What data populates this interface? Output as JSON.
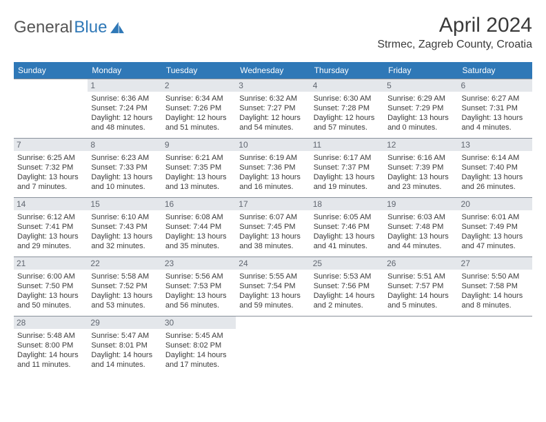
{
  "brand": {
    "part1": "General",
    "part2": "Blue"
  },
  "title": {
    "monthYear": "April 2024",
    "location": "Strmec, Zagreb County, Croatia"
  },
  "colors": {
    "headerBg": "#2f78b7",
    "headerText": "#ffffff",
    "daynumBg": "#e4e7eb",
    "daynumText": "#606670",
    "rowBorder": "#88909a",
    "bodyText": "#3a3a3a",
    "brandBlue": "#2f78b7"
  },
  "dayHeaders": [
    "Sunday",
    "Monday",
    "Tuesday",
    "Wednesday",
    "Thursday",
    "Friday",
    "Saturday"
  ],
  "weeks": [
    [
      {
        "empty": true
      },
      {
        "num": "1",
        "sunrise": "Sunrise: 6:36 AM",
        "sunset": "Sunset: 7:24 PM",
        "day1": "Daylight: 12 hours",
        "day2": "and 48 minutes."
      },
      {
        "num": "2",
        "sunrise": "Sunrise: 6:34 AM",
        "sunset": "Sunset: 7:26 PM",
        "day1": "Daylight: 12 hours",
        "day2": "and 51 minutes."
      },
      {
        "num": "3",
        "sunrise": "Sunrise: 6:32 AM",
        "sunset": "Sunset: 7:27 PM",
        "day1": "Daylight: 12 hours",
        "day2": "and 54 minutes."
      },
      {
        "num": "4",
        "sunrise": "Sunrise: 6:30 AM",
        "sunset": "Sunset: 7:28 PM",
        "day1": "Daylight: 12 hours",
        "day2": "and 57 minutes."
      },
      {
        "num": "5",
        "sunrise": "Sunrise: 6:29 AM",
        "sunset": "Sunset: 7:29 PM",
        "day1": "Daylight: 13 hours",
        "day2": "and 0 minutes."
      },
      {
        "num": "6",
        "sunrise": "Sunrise: 6:27 AM",
        "sunset": "Sunset: 7:31 PM",
        "day1": "Daylight: 13 hours",
        "day2": "and 4 minutes."
      }
    ],
    [
      {
        "num": "7",
        "sunrise": "Sunrise: 6:25 AM",
        "sunset": "Sunset: 7:32 PM",
        "day1": "Daylight: 13 hours",
        "day2": "and 7 minutes."
      },
      {
        "num": "8",
        "sunrise": "Sunrise: 6:23 AM",
        "sunset": "Sunset: 7:33 PM",
        "day1": "Daylight: 13 hours",
        "day2": "and 10 minutes."
      },
      {
        "num": "9",
        "sunrise": "Sunrise: 6:21 AM",
        "sunset": "Sunset: 7:35 PM",
        "day1": "Daylight: 13 hours",
        "day2": "and 13 minutes."
      },
      {
        "num": "10",
        "sunrise": "Sunrise: 6:19 AM",
        "sunset": "Sunset: 7:36 PM",
        "day1": "Daylight: 13 hours",
        "day2": "and 16 minutes."
      },
      {
        "num": "11",
        "sunrise": "Sunrise: 6:17 AM",
        "sunset": "Sunset: 7:37 PM",
        "day1": "Daylight: 13 hours",
        "day2": "and 19 minutes."
      },
      {
        "num": "12",
        "sunrise": "Sunrise: 6:16 AM",
        "sunset": "Sunset: 7:39 PM",
        "day1": "Daylight: 13 hours",
        "day2": "and 23 minutes."
      },
      {
        "num": "13",
        "sunrise": "Sunrise: 6:14 AM",
        "sunset": "Sunset: 7:40 PM",
        "day1": "Daylight: 13 hours",
        "day2": "and 26 minutes."
      }
    ],
    [
      {
        "num": "14",
        "sunrise": "Sunrise: 6:12 AM",
        "sunset": "Sunset: 7:41 PM",
        "day1": "Daylight: 13 hours",
        "day2": "and 29 minutes."
      },
      {
        "num": "15",
        "sunrise": "Sunrise: 6:10 AM",
        "sunset": "Sunset: 7:43 PM",
        "day1": "Daylight: 13 hours",
        "day2": "and 32 minutes."
      },
      {
        "num": "16",
        "sunrise": "Sunrise: 6:08 AM",
        "sunset": "Sunset: 7:44 PM",
        "day1": "Daylight: 13 hours",
        "day2": "and 35 minutes."
      },
      {
        "num": "17",
        "sunrise": "Sunrise: 6:07 AM",
        "sunset": "Sunset: 7:45 PM",
        "day1": "Daylight: 13 hours",
        "day2": "and 38 minutes."
      },
      {
        "num": "18",
        "sunrise": "Sunrise: 6:05 AM",
        "sunset": "Sunset: 7:46 PM",
        "day1": "Daylight: 13 hours",
        "day2": "and 41 minutes."
      },
      {
        "num": "19",
        "sunrise": "Sunrise: 6:03 AM",
        "sunset": "Sunset: 7:48 PM",
        "day1": "Daylight: 13 hours",
        "day2": "and 44 minutes."
      },
      {
        "num": "20",
        "sunrise": "Sunrise: 6:01 AM",
        "sunset": "Sunset: 7:49 PM",
        "day1": "Daylight: 13 hours",
        "day2": "and 47 minutes."
      }
    ],
    [
      {
        "num": "21",
        "sunrise": "Sunrise: 6:00 AM",
        "sunset": "Sunset: 7:50 PM",
        "day1": "Daylight: 13 hours",
        "day2": "and 50 minutes."
      },
      {
        "num": "22",
        "sunrise": "Sunrise: 5:58 AM",
        "sunset": "Sunset: 7:52 PM",
        "day1": "Daylight: 13 hours",
        "day2": "and 53 minutes."
      },
      {
        "num": "23",
        "sunrise": "Sunrise: 5:56 AM",
        "sunset": "Sunset: 7:53 PM",
        "day1": "Daylight: 13 hours",
        "day2": "and 56 minutes."
      },
      {
        "num": "24",
        "sunrise": "Sunrise: 5:55 AM",
        "sunset": "Sunset: 7:54 PM",
        "day1": "Daylight: 13 hours",
        "day2": "and 59 minutes."
      },
      {
        "num": "25",
        "sunrise": "Sunrise: 5:53 AM",
        "sunset": "Sunset: 7:56 PM",
        "day1": "Daylight: 14 hours",
        "day2": "and 2 minutes."
      },
      {
        "num": "26",
        "sunrise": "Sunrise: 5:51 AM",
        "sunset": "Sunset: 7:57 PM",
        "day1": "Daylight: 14 hours",
        "day2": "and 5 minutes."
      },
      {
        "num": "27",
        "sunrise": "Sunrise: 5:50 AM",
        "sunset": "Sunset: 7:58 PM",
        "day1": "Daylight: 14 hours",
        "day2": "and 8 minutes."
      }
    ],
    [
      {
        "num": "28",
        "sunrise": "Sunrise: 5:48 AM",
        "sunset": "Sunset: 8:00 PM",
        "day1": "Daylight: 14 hours",
        "day2": "and 11 minutes."
      },
      {
        "num": "29",
        "sunrise": "Sunrise: 5:47 AM",
        "sunset": "Sunset: 8:01 PM",
        "day1": "Daylight: 14 hours",
        "day2": "and 14 minutes."
      },
      {
        "num": "30",
        "sunrise": "Sunrise: 5:45 AM",
        "sunset": "Sunset: 8:02 PM",
        "day1": "Daylight: 14 hours",
        "day2": "and 17 minutes."
      },
      {
        "empty": true
      },
      {
        "empty": true
      },
      {
        "empty": true
      },
      {
        "empty": true
      }
    ]
  ]
}
